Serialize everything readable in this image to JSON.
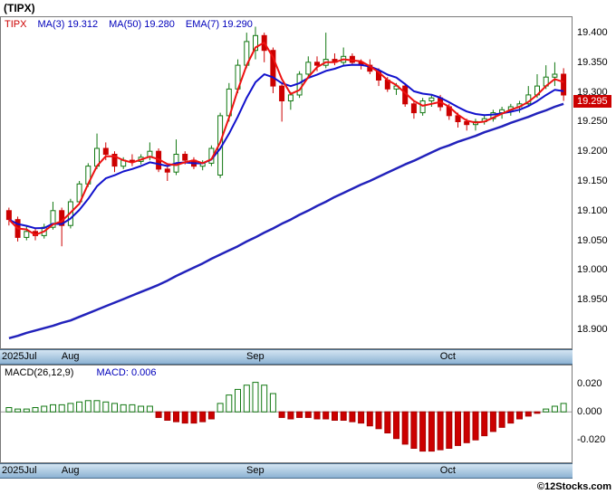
{
  "title": "(TIPX)",
  "footer": {
    "watermark": "©12Stocks.com"
  },
  "colors": {
    "up": "#117711",
    "down": "#cc0000",
    "ma_short": "#ee1111",
    "ema": "#1111cc",
    "ma_long": "#2222bb",
    "badge_bg": "#cc0000",
    "zero_line": "#999999"
  },
  "chart_data": [
    {
      "type": "candlestick",
      "symbol": "TIPX",
      "legend": [
        {
          "label": "TIPX",
          "value": "",
          "color": "#cc0000"
        },
        {
          "label": "MA(3)",
          "value": "19.312",
          "color": "#0000bb"
        },
        {
          "label": "MA(50)",
          "value": "19.280",
          "color": "#0000bb"
        },
        {
          "label": "EMA(7)",
          "value": "19.290",
          "color": "#0000bb"
        }
      ],
      "ma_short_period": 3,
      "ema_period": 7,
      "ma_long_period": 50,
      "last_price": 19.295,
      "ylim": [
        18.868,
        19.426
      ],
      "y_ticks": [
        19.4,
        19.35,
        19.3,
        19.25,
        19.2,
        19.15,
        19.1,
        19.05,
        19.0,
        18.95,
        18.9
      ],
      "x_labels": [
        {
          "index": 0,
          "label": "2025Jul"
        },
        {
          "index": 7,
          "label": "Aug"
        },
        {
          "index": 28,
          "label": "Sep"
        },
        {
          "index": 50,
          "label": "Oct"
        }
      ],
      "candles": [
        [
          19.1,
          19.105,
          19.075,
          19.085
        ],
        [
          19.085,
          19.09,
          19.048,
          19.055
        ],
        [
          19.055,
          19.075,
          19.05,
          19.065
        ],
        [
          19.065,
          19.07,
          19.05,
          19.058
        ],
        [
          19.058,
          19.078,
          19.053,
          19.072
        ],
        [
          19.072,
          19.115,
          19.068,
          19.1
        ],
        [
          19.1,
          19.105,
          19.04,
          19.075
        ],
        [
          19.075,
          19.12,
          19.07,
          19.115
        ],
        [
          19.115,
          19.15,
          19.11,
          19.145
        ],
        [
          19.145,
          19.18,
          19.14,
          19.175
        ],
        [
          19.175,
          19.23,
          19.17,
          19.205
        ],
        [
          19.205,
          19.215,
          19.185,
          19.195
        ],
        [
          19.195,
          19.2,
          19.165,
          19.175
        ],
        [
          19.175,
          19.19,
          19.17,
          19.185
        ],
        [
          19.185,
          19.195,
          19.175,
          19.183
        ],
        [
          19.183,
          19.195,
          19.178,
          19.19
        ],
        [
          19.19,
          19.215,
          19.185,
          19.2
        ],
        [
          19.2,
          19.205,
          19.165,
          19.17
        ],
        [
          19.17,
          19.175,
          19.15,
          19.165
        ],
        [
          19.165,
          19.22,
          19.16,
          19.195
        ],
        [
          19.195,
          19.2,
          19.178,
          19.185
        ],
        [
          19.185,
          19.19,
          19.17,
          19.175
        ],
        [
          19.175,
          19.185,
          19.168,
          19.18
        ],
        [
          19.18,
          19.21,
          19.175,
          19.205
        ],
        [
          19.16,
          19.265,
          19.155,
          19.26
        ],
        [
          19.26,
          19.315,
          19.25,
          19.305
        ],
        [
          19.305,
          19.355,
          19.298,
          19.345
        ],
        [
          19.345,
          19.4,
          19.34,
          19.385
        ],
        [
          19.37,
          19.41,
          19.355,
          19.395
        ],
        [
          19.395,
          19.4,
          19.35,
          19.37
        ],
        [
          19.37,
          19.375,
          19.298,
          19.31
        ],
        [
          19.31,
          19.315,
          19.25,
          19.285
        ],
        [
          19.285,
          19.3,
          19.27,
          19.295
        ],
        [
          19.295,
          19.335,
          19.29,
          19.33
        ],
        [
          19.33,
          19.36,
          19.325,
          19.35
        ],
        [
          19.35,
          19.36,
          19.335,
          19.345
        ],
        [
          19.345,
          19.4,
          19.34,
          19.355
        ],
        [
          19.355,
          19.365,
          19.345,
          19.35
        ],
        [
          19.35,
          19.375,
          19.345,
          19.36
        ],
        [
          19.36,
          19.365,
          19.345,
          19.35
        ],
        [
          19.35,
          19.355,
          19.338,
          19.345
        ],
        [
          19.345,
          19.355,
          19.33,
          19.335
        ],
        [
          19.335,
          19.34,
          19.31,
          19.32
        ],
        [
          19.32,
          19.325,
          19.3,
          19.305
        ],
        [
          19.305,
          19.315,
          19.295,
          19.31
        ],
        [
          19.31,
          19.315,
          19.275,
          19.28
        ],
        [
          19.28,
          19.285,
          19.255,
          19.265
        ],
        [
          19.265,
          19.29,
          19.26,
          19.285
        ],
        [
          19.285,
          19.295,
          19.275,
          19.29
        ],
        [
          19.29,
          19.295,
          19.268,
          19.275
        ],
        [
          19.275,
          19.28,
          19.253,
          19.26
        ],
        [
          19.26,
          19.265,
          19.24,
          19.25
        ],
        [
          19.25,
          19.255,
          19.235,
          19.245
        ],
        [
          19.245,
          19.255,
          19.235,
          19.25
        ],
        [
          19.25,
          19.26,
          19.245,
          19.255
        ],
        [
          19.255,
          19.27,
          19.25,
          19.265
        ],
        [
          19.265,
          19.275,
          19.255,
          19.27
        ],
        [
          19.27,
          19.28,
          19.26,
          19.275
        ],
        [
          19.275,
          19.285,
          19.265,
          19.28
        ],
        [
          19.28,
          19.31,
          19.275,
          19.295
        ],
        [
          19.295,
          19.33,
          19.29,
          19.31
        ],
        [
          19.31,
          19.345,
          19.305,
          19.325
        ],
        [
          19.325,
          19.35,
          19.31,
          19.33
        ],
        [
          19.33,
          19.34,
          19.285,
          19.295
        ]
      ],
      "ma50": [
        18.885,
        18.889,
        18.894,
        18.898,
        18.902,
        18.906,
        18.911,
        18.915,
        18.921,
        18.927,
        18.933,
        18.939,
        18.945,
        18.951,
        18.957,
        18.963,
        18.969,
        18.975,
        18.982,
        18.99,
        18.997,
        19.004,
        19.011,
        19.019,
        19.026,
        19.033,
        19.04,
        19.048,
        19.055,
        19.063,
        19.07,
        19.078,
        19.085,
        19.093,
        19.1,
        19.108,
        19.115,
        19.123,
        19.13,
        19.137,
        19.144,
        19.15,
        19.157,
        19.164,
        19.171,
        19.178,
        19.184,
        19.191,
        19.198,
        19.205,
        19.21,
        19.216,
        19.221,
        19.226,
        19.232,
        19.237,
        19.242,
        19.248,
        19.253,
        19.258,
        19.264,
        19.269,
        19.275,
        19.28
      ]
    },
    {
      "type": "bar",
      "title": "MACD(26,12,9)",
      "value_label": "MACD: 0.006",
      "ylim": [
        -0.036,
        0.033
      ],
      "y_ticks": [
        0.02,
        0.0,
        -0.02
      ],
      "values": [
        0.003,
        0.002,
        0.002,
        0.003,
        0.004,
        0.005,
        0.005,
        0.006,
        0.007,
        0.008,
        0.008,
        0.007,
        0.006,
        0.005,
        0.005,
        0.004,
        0.004,
        -0.004,
        -0.006,
        -0.007,
        -0.008,
        -0.008,
        -0.007,
        -0.005,
        0.006,
        0.012,
        0.016,
        0.019,
        0.021,
        0.019,
        0.013,
        -0.004,
        -0.005,
        -0.004,
        -0.004,
        -0.005,
        -0.005,
        -0.006,
        -0.006,
        -0.007,
        -0.008,
        -0.01,
        -0.012,
        -0.015,
        -0.019,
        -0.023,
        -0.026,
        -0.028,
        -0.028,
        -0.027,
        -0.026,
        -0.024,
        -0.022,
        -0.02,
        -0.017,
        -0.014,
        -0.011,
        -0.008,
        -0.005,
        -0.003,
        -0.001,
        0.002,
        0.004,
        0.006
      ]
    }
  ]
}
